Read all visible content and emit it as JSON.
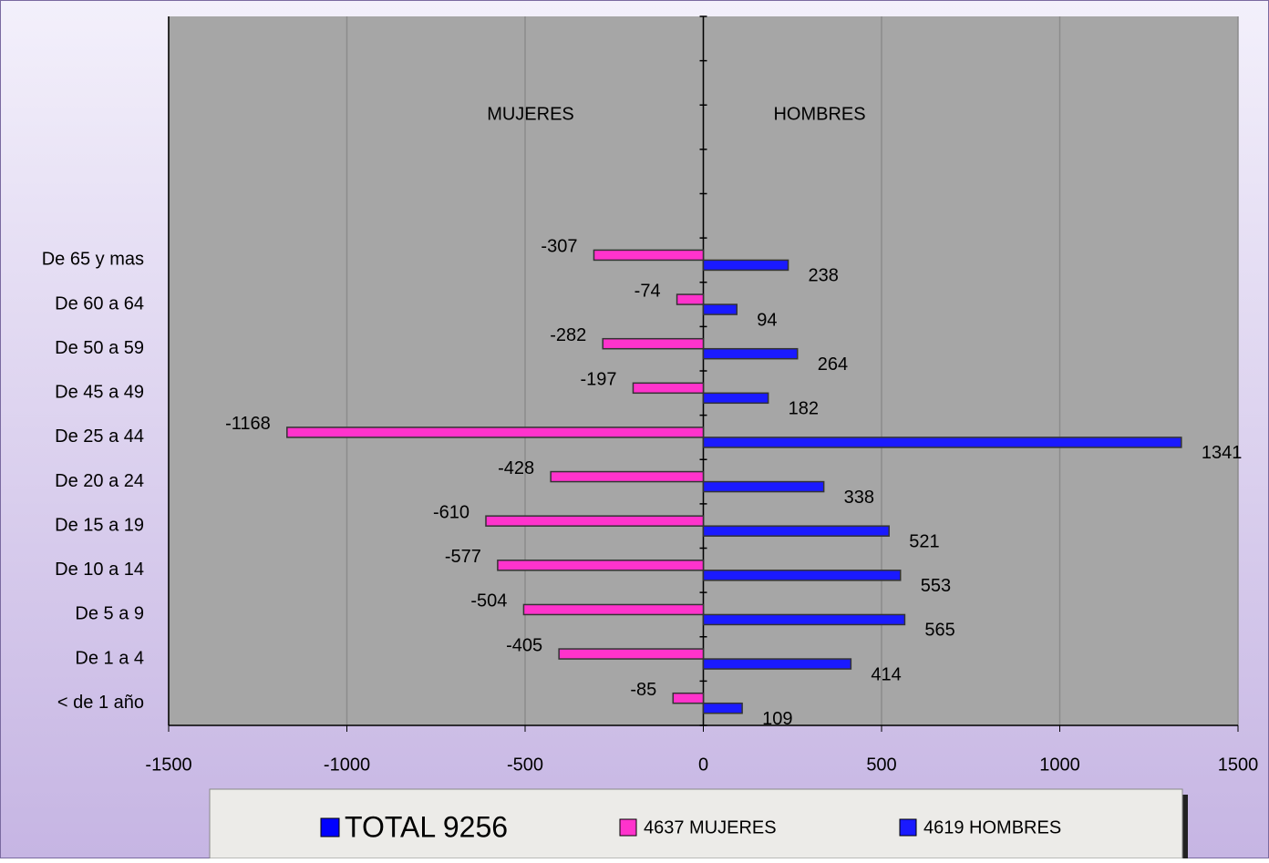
{
  "chart_data": {
    "type": "bar",
    "orientation": "horizontal",
    "categories": [
      "< de 1 año",
      "De 1 a 4",
      "De 5 a 9",
      "De 10 a 14",
      "De 15 a 19",
      "De 20 a 24",
      "De 25 a 44",
      "De 45 a 49",
      "De 50 a 59",
      "De 60 a 64",
      "De 65 y mas",
      null,
      null,
      null,
      null,
      null
    ],
    "series": [
      {
        "name": "4637 MUJERES",
        "color": "#ff33cc",
        "values": [
          -85,
          -405,
          -504,
          -577,
          -610,
          -428,
          -1168,
          -197,
          -282,
          -74,
          -307,
          null,
          null,
          null,
          null,
          null
        ]
      },
      {
        "name": "4619 HOMBRES",
        "color": "#1a1aff",
        "values": [
          109,
          414,
          565,
          553,
          521,
          338,
          1341,
          182,
          264,
          94,
          238,
          null,
          null,
          null,
          null,
          null
        ]
      }
    ],
    "legend_total": {
      "name": "TOTAL 9256",
      "color": "#0000ff"
    },
    "annotations": [
      "MUJERES",
      "HOMBRES"
    ],
    "xlim": [
      -1500,
      1500
    ],
    "xticks": [
      -1500,
      -1000,
      -500,
      0,
      500,
      1000,
      1500
    ],
    "grid": true,
    "legend": "bottom"
  }
}
